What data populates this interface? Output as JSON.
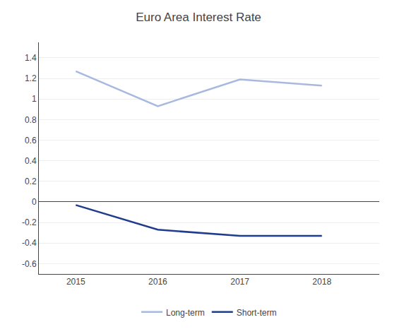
{
  "chart_data": {
    "type": "line",
    "title": "Euro Area Interest Rate",
    "x": [
      2015,
      2016,
      2017,
      2018
    ],
    "series": [
      {
        "name": "Long-term",
        "color": "#a8b9e0",
        "values": [
          1.27,
          0.93,
          1.19,
          1.13
        ]
      },
      {
        "name": "Short-term",
        "color": "#1f3d8c",
        "values": [
          -0.03,
          -0.27,
          -0.33,
          -0.33
        ]
      }
    ],
    "xlim": [
      2014.55,
      2018.7
    ],
    "xticks": [
      2015,
      2016,
      2017,
      2018
    ],
    "ylim": [
      -0.7,
      1.55
    ],
    "yticks": [
      -0.6,
      -0.4,
      -0.2,
      0,
      0.2,
      0.4,
      0.6,
      0.8,
      1.0,
      1.2,
      1.4
    ],
    "grid": true,
    "legend": "bottom"
  }
}
